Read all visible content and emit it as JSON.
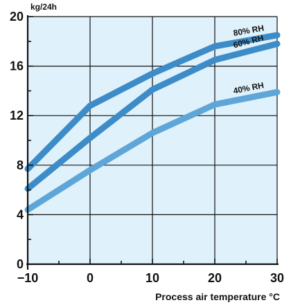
{
  "chart_data": {
    "type": "line",
    "title": "",
    "xlabel": "Process air temperature °C",
    "ylabel": "kg/24h",
    "xlim": [
      -10,
      30
    ],
    "ylim": [
      0,
      20
    ],
    "x_ticks": [
      "−10",
      "0",
      "10",
      "20",
      "30"
    ],
    "x_tick_values": [
      -10,
      0,
      10,
      20,
      30
    ],
    "y_ticks": [
      "0",
      "4",
      "8",
      "12",
      "16",
      "20"
    ],
    "y_tick_values": [
      0,
      4,
      8,
      12,
      16,
      20
    ],
    "grid": true,
    "plot_background": "#dff1fb",
    "series": [
      {
        "name": "80% RH",
        "color": "#3d8cc8",
        "x": [
          -10,
          0,
          10,
          20,
          30
        ],
        "values": [
          7.7,
          12.8,
          15.4,
          17.6,
          18.5
        ]
      },
      {
        "name": "60% RH",
        "color": "#3d8cc8",
        "x": [
          -10,
          0,
          10,
          20,
          30
        ],
        "values": [
          6.1,
          10.2,
          14.1,
          16.5,
          17.8
        ]
      },
      {
        "name": "40% RH",
        "color": "#5ea6d8",
        "x": [
          -10,
          0,
          10,
          20,
          30
        ],
        "values": [
          4.4,
          7.6,
          10.6,
          12.9,
          13.9
        ]
      }
    ]
  }
}
